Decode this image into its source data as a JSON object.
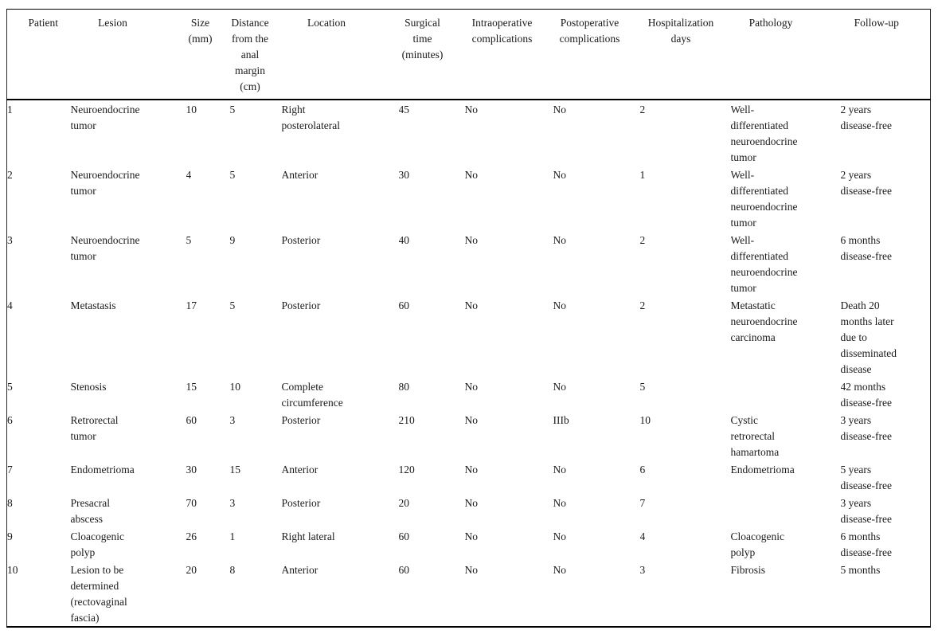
{
  "table": {
    "columns": [
      {
        "key": "patient",
        "label": "Patient"
      },
      {
        "key": "lesion",
        "label": "Lesion"
      },
      {
        "key": "size",
        "label": "Size\n(mm)"
      },
      {
        "key": "distance",
        "label": "Distance\nfrom the\nanal\nmargin\n(cm)"
      },
      {
        "key": "location",
        "label": "Location"
      },
      {
        "key": "surgical-time",
        "label": "Surgical\ntime\n(minutes)"
      },
      {
        "key": "intraoperative-complications",
        "label": "Intraoperative\ncomplications"
      },
      {
        "key": "postoperative-complications",
        "label": "Postoperative\ncomplications"
      },
      {
        "key": "hospitalization-days",
        "label": "Hospitalization\ndays"
      },
      {
        "key": "pathology",
        "label": "Pathology"
      },
      {
        "key": "follow-up",
        "label": "Follow-up"
      }
    ],
    "rows": [
      [
        "1",
        "Neuroendocrine\ntumor",
        "10",
        "5",
        "Right\nposterolateral",
        "45",
        "No",
        "No",
        "2",
        "Well-\ndifferentiated\nneuroendocrine\ntumor",
        "2 years\ndisease-free"
      ],
      [
        "2",
        "Neuroendocrine\ntumor",
        "4",
        "5",
        "Anterior",
        "30",
        "No",
        "No",
        "1",
        "Well-\ndifferentiated\nneuroendocrine\ntumor",
        "2 years\ndisease-free"
      ],
      [
        "3",
        "Neuroendocrine\ntumor",
        "5",
        "9",
        "Posterior",
        "40",
        "No",
        "No",
        "2",
        "Well-\ndifferentiated\nneuroendocrine\ntumor",
        "6 months\ndisease-free"
      ],
      [
        "4",
        "Metastasis",
        "17",
        "5",
        "Posterior",
        "60",
        "No",
        "No",
        "2",
        "Metastatic\nneuroendocrine\ncarcinoma",
        "Death 20\nmonths later\ndue to\ndisseminated\ndisease"
      ],
      [
        "5",
        "Stenosis",
        "15",
        "10",
        "Complete\ncircumference",
        "80",
        "No",
        "No",
        "5",
        "",
        "42 months\ndisease-free"
      ],
      [
        "6",
        "Retrorectal\ntumor",
        "60",
        "3",
        "Posterior",
        "210",
        "No",
        "IIIb",
        "10",
        "Cystic\nretrorectal\nhamartoma",
        "3 years\ndisease-free"
      ],
      [
        "7",
        "Endometrioma",
        "30",
        "15",
        "Anterior",
        "120",
        "No",
        "No",
        "6",
        "Endometrioma",
        "5 years\ndisease-free"
      ],
      [
        "8",
        "Presacral\nabscess",
        "70",
        "3",
        "Posterior",
        "20",
        "No",
        "No",
        "7",
        "",
        "3 years\ndisease-free"
      ],
      [
        "9",
        "Cloacogenic\npolyp",
        "26",
        "1",
        "Right lateral",
        "60",
        "No",
        "No",
        "4",
        "Cloacogenic\npolyp",
        "6 months\ndisease-free"
      ],
      [
        "10",
        "Lesion to be\ndetermined\n(rectovaginal\nfascia)",
        "20",
        "8",
        "Anterior",
        "60",
        "No",
        "No",
        "3",
        "Fibrosis",
        "5 months"
      ]
    ]
  }
}
